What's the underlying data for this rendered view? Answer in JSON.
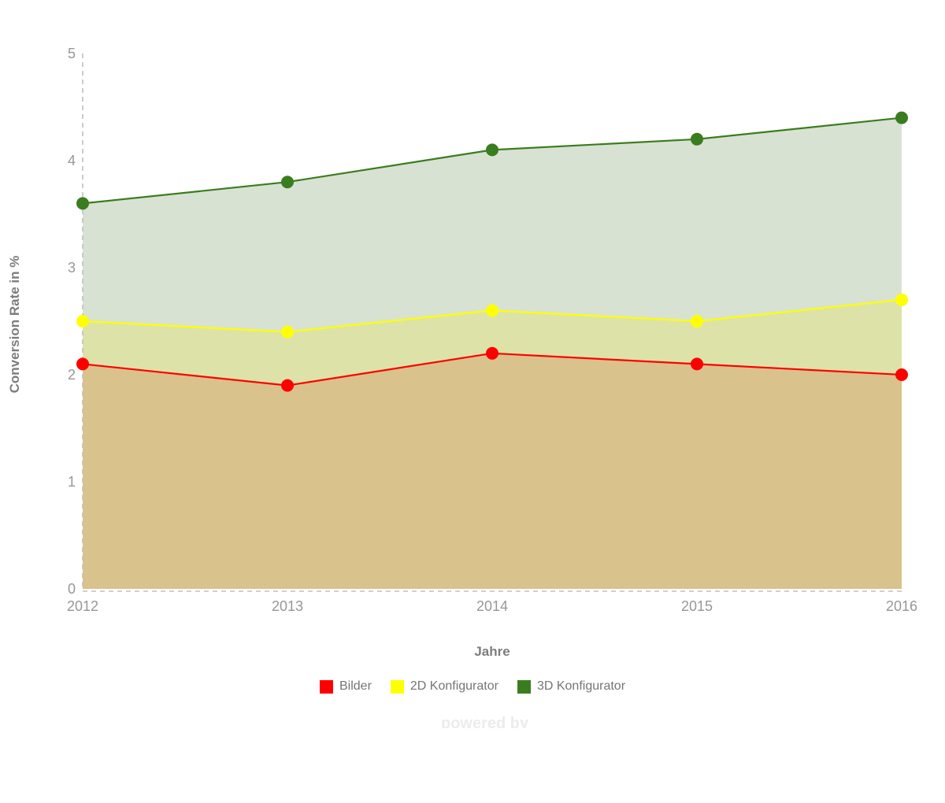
{
  "chart_data": {
    "type": "area",
    "title": "",
    "xlabel": "Jahre",
    "ylabel": "Conversion Rate in %",
    "x": [
      2012,
      2013,
      2014,
      2015,
      2016
    ],
    "y_ticks": [
      0,
      1,
      2,
      3,
      4,
      5
    ],
    "ylim": [
      0,
      5
    ],
    "grid": false,
    "legend_position": "bottom",
    "series": [
      {
        "name": "Bilder",
        "color": "#ff0000",
        "area_fill": "#d9c28b",
        "values": [
          2.1,
          1.9,
          2.2,
          2.1,
          2.0
        ]
      },
      {
        "name": "2D Konfigurator",
        "color": "#ffff00",
        "area_fill": "#dde3a8",
        "values": [
          2.5,
          2.4,
          2.6,
          2.5,
          2.7
        ]
      },
      {
        "name": "3D Konfigurator",
        "color": "#3a7d1e",
        "area_fill": "#d8e2d3",
        "values": [
          3.6,
          3.8,
          4.1,
          4.2,
          4.4
        ]
      }
    ],
    "axis_style": {
      "axis_line_color": "#c0c0c0",
      "tick_label_color": "#979797",
      "tick_font_size": 18
    }
  },
  "watermark": "powered by"
}
